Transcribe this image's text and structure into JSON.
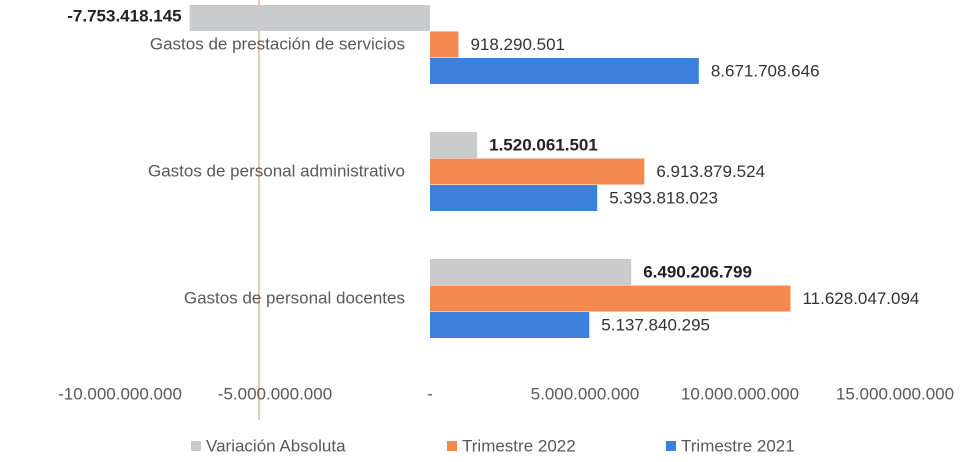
{
  "chart_data": {
    "type": "bar",
    "orientation": "horizontal",
    "categories": [
      "Gastos de prestación de servicios",
      "Gastos de personal administrativo",
      "Gastos de personal docentes"
    ],
    "series": [
      {
        "name": "Variación Absoluta",
        "color": "#c9cbcc",
        "values": [
          -7753418145,
          1520061501,
          6490206799
        ],
        "value_labels": [
          "-7.753.418.145",
          "1.520.061.501",
          "6.490.206.799"
        ]
      },
      {
        "name": "Trimestre 2022",
        "color": "#f4894f",
        "values": [
          918290501,
          6913879524,
          11628047094
        ],
        "value_labels": [
          "918.290.501",
          "6.913.879.524",
          "11.628.047.094"
        ]
      },
      {
        "name": "Trimestre 2021",
        "color": "#3c80dc",
        "values": [
          8671708646,
          5393818023,
          5137840295
        ],
        "value_labels": [
          "8.671.708.646",
          "5.393.818.023",
          "5.137.840.295"
        ]
      }
    ],
    "xlim": [
      -10000000000,
      15000000000
    ],
    "xticks": [
      {
        "value": -10000000000,
        "label": "-10.000.000.000"
      },
      {
        "value": -5000000000,
        "label": "-5.000.000.000"
      },
      {
        "value": 0,
        "label": "-"
      },
      {
        "value": 5000000000,
        "label": "5.000.000.000"
      },
      {
        "value": 10000000000,
        "label": "10.000.000.000"
      },
      {
        "value": 15000000000,
        "label": "15.000.000.000"
      }
    ],
    "legend": "bottom"
  }
}
